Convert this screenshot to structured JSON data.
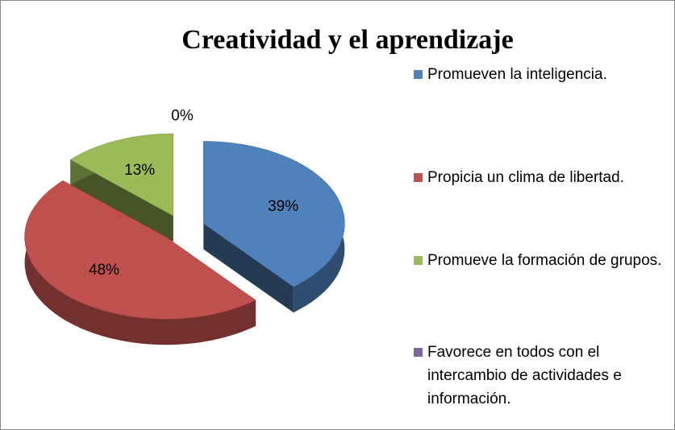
{
  "chart_data": {
    "type": "pie",
    "title": "Creatividad y el aprendizaje",
    "categories": [
      "Promueven  la inteligencia.",
      "Propicia  un clima de libertad.",
      "Promueve  la formación de grupos.",
      "Favorece en todos con el intercambio de actividades e información."
    ],
    "values": [
      39,
      48,
      13,
      0
    ],
    "value_labels": [
      "39%",
      "48%",
      "13%",
      "0%"
    ],
    "colors": [
      "#4f81bd",
      "#c0504d",
      "#9bbb59",
      "#8064a2"
    ],
    "legend": "right"
  }
}
